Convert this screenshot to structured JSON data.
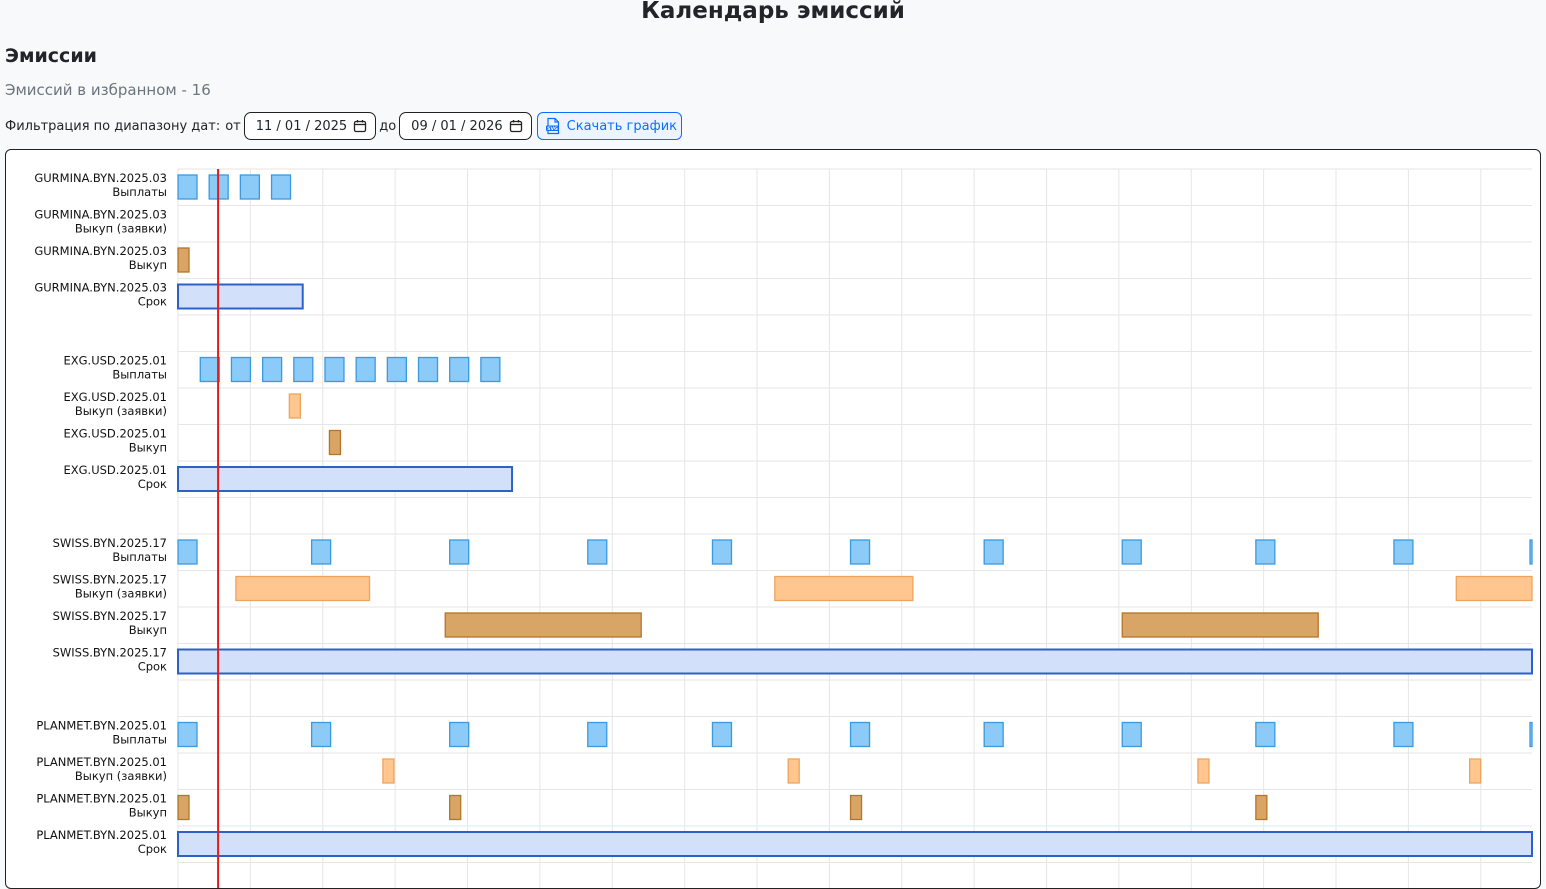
{
  "header": {
    "title": "Календарь эмиссий",
    "section_title": "Эмиссии",
    "favorites_text": "Эмиссий в избранном - 16"
  },
  "filter": {
    "label": "Фильтрация по диапазону дат:",
    "from_label": "от",
    "from_value": "11 / 01 / 2025",
    "to_label": "до",
    "to_value": "09 / 01 / 2026",
    "download_label": "Скачать график"
  },
  "colors": {
    "payment": "#8ccaf7",
    "payment_border": "#3a9ae0",
    "buyback_request": "#ffc68f",
    "buyback_request_border": "#f0a35a",
    "buyback": "#d9a566",
    "buyback_border": "#b87422",
    "term": "#d2e0fa",
    "term_border": "#2b62c9",
    "today_line": "#e31b1b",
    "grid": "#e6e6e6"
  },
  "chart_data": {
    "type": "timeline",
    "x_range": [
      "2025-11-01",
      "2026-09-01"
    ],
    "today": "2025-11-10",
    "rows": [
      {
        "issue": "GURMINA.BYN.2025.03",
        "kind": "Выплаты",
        "style": "payment",
        "events": [
          [
            "2025-11-01",
            "2025-11-02"
          ],
          [
            "2025-11-08",
            "2025-11-09"
          ],
          [
            "2025-11-15",
            "2025-11-16"
          ],
          [
            "2025-11-22",
            "2025-11-23"
          ]
        ]
      },
      {
        "issue": "GURMINA.BYN.2025.03",
        "kind": "Выкуп (заявки)",
        "style": "buyback_request",
        "events": []
      },
      {
        "issue": "GURMINA.BYN.2025.03",
        "kind": "Выкуп",
        "style": "buyback",
        "events": [
          [
            "2025-11-01",
            "2025-11-01"
          ]
        ]
      },
      {
        "issue": "GURMINA.BYN.2025.03",
        "kind": "Срок",
        "style": "term",
        "events": [
          [
            "2025-11-01",
            "2025-11-29"
          ]
        ]
      },
      {
        "issue": "EXG.USD.2025.01",
        "kind": "Выплаты",
        "style": "payment",
        "events": [
          [
            "2025-11-06",
            "2025-11-07"
          ],
          [
            "2025-11-13",
            "2025-11-14"
          ],
          [
            "2025-11-20",
            "2025-11-21"
          ],
          [
            "2025-11-27",
            "2025-11-28"
          ],
          [
            "2025-12-04",
            "2025-12-05"
          ],
          [
            "2025-12-11",
            "2025-12-12"
          ],
          [
            "2025-12-18",
            "2025-12-19"
          ],
          [
            "2025-12-25",
            "2025-12-26"
          ],
          [
            "2026-01-01",
            "2026-01-02"
          ],
          [
            "2026-01-08",
            "2026-01-09"
          ]
        ]
      },
      {
        "issue": "EXG.USD.2025.01",
        "kind": "Выкуп (заявки)",
        "style": "buyback_request",
        "events": [
          [
            "2025-11-26",
            "2025-11-26"
          ]
        ]
      },
      {
        "issue": "EXG.USD.2025.01",
        "kind": "Выкуп",
        "style": "buyback",
        "events": [
          [
            "2025-12-05",
            "2025-12-05"
          ]
        ]
      },
      {
        "issue": "EXG.USD.2025.01",
        "kind": "Срок",
        "style": "term",
        "events": [
          [
            "2025-11-01",
            "2026-01-15"
          ]
        ]
      },
      {
        "issue": "SWISS.BYN.2025.17",
        "kind": "Выплаты",
        "style": "payment",
        "events": [
          [
            "2025-11-01",
            "2025-11-02"
          ],
          [
            "2025-12-01",
            "2025-12-02"
          ],
          [
            "2026-01-01",
            "2026-01-02"
          ],
          [
            "2026-02-01",
            "2026-02-02"
          ],
          [
            "2026-03-01",
            "2026-03-02"
          ],
          [
            "2026-04-01",
            "2026-04-02"
          ],
          [
            "2026-05-01",
            "2026-05-02"
          ],
          [
            "2026-06-01",
            "2026-06-02"
          ],
          [
            "2026-07-01",
            "2026-07-02"
          ],
          [
            "2026-08-01",
            "2026-08-02"
          ],
          [
            "2026-09-01",
            "2026-09-02"
          ]
        ]
      },
      {
        "issue": "SWISS.BYN.2025.17",
        "kind": "Выкуп (заявки)",
        "style": "buyback_request",
        "events": [
          [
            "2025-11-14",
            "2025-12-14"
          ],
          [
            "2026-03-15",
            "2026-04-15"
          ],
          [
            "2026-08-15",
            "2026-09-01"
          ]
        ]
      },
      {
        "issue": "SWISS.BYN.2025.17",
        "kind": "Выкуп",
        "style": "buyback",
        "events": [
          [
            "2025-12-31",
            "2026-02-13"
          ],
          [
            "2026-06-01",
            "2026-07-15"
          ]
        ]
      },
      {
        "issue": "SWISS.BYN.2025.17",
        "kind": "Срок",
        "style": "term",
        "events": [
          [
            "2025-11-01",
            "2026-09-01"
          ]
        ]
      },
      {
        "issue": "PLANMET.BYN.2025.01",
        "kind": "Выплаты",
        "style": "payment",
        "events": [
          [
            "2025-11-01",
            "2025-11-02"
          ],
          [
            "2025-12-01",
            "2025-12-02"
          ],
          [
            "2026-01-01",
            "2026-01-02"
          ],
          [
            "2026-02-01",
            "2026-02-02"
          ],
          [
            "2026-03-01",
            "2026-03-02"
          ],
          [
            "2026-04-01",
            "2026-04-02"
          ],
          [
            "2026-05-01",
            "2026-05-02"
          ],
          [
            "2026-06-01",
            "2026-06-02"
          ],
          [
            "2026-07-01",
            "2026-07-02"
          ],
          [
            "2026-08-01",
            "2026-08-02"
          ],
          [
            "2026-09-01",
            "2026-09-02"
          ]
        ]
      },
      {
        "issue": "PLANMET.BYN.2025.01",
        "kind": "Выкуп (заявки)",
        "style": "buyback_request",
        "events": [
          [
            "2025-12-17",
            "2025-12-18"
          ],
          [
            "2026-03-18",
            "2026-03-19"
          ],
          [
            "2026-06-18",
            "2026-06-19"
          ],
          [
            "2026-08-18",
            "2026-08-19"
          ]
        ]
      },
      {
        "issue": "PLANMET.BYN.2025.01",
        "kind": "Выкуп",
        "style": "buyback",
        "events": [
          [
            "2025-11-01",
            "2025-11-02"
          ],
          [
            "2026-01-01",
            "2026-01-02"
          ],
          [
            "2026-04-01",
            "2026-04-02"
          ],
          [
            "2026-07-01",
            "2026-07-02"
          ]
        ]
      },
      {
        "issue": "PLANMET.BYN.2025.01",
        "kind": "Срок",
        "style": "term",
        "events": [
          [
            "2025-11-01",
            "2026-09-01"
          ]
        ]
      }
    ]
  }
}
